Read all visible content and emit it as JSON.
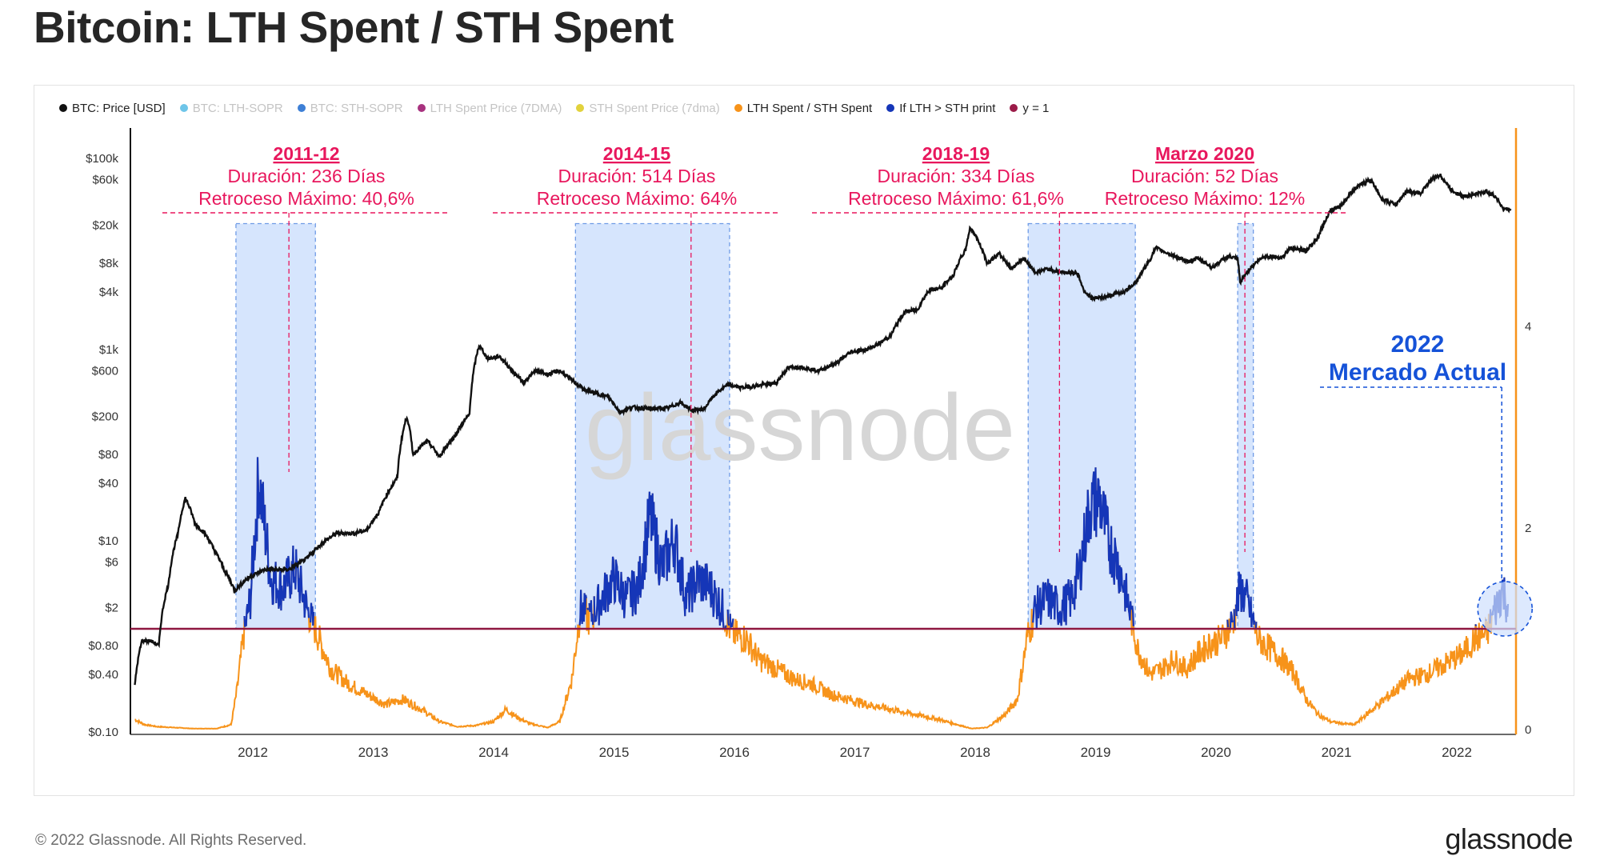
{
  "title": "Bitcoin: LTH Spent / STH Spent",
  "footer": {
    "copyright": "© 2022 Glassnode. All Rights Reserved.",
    "brand": "glassnode"
  },
  "watermark": "glassnode",
  "legend": [
    {
      "label": "BTC: Price [USD]",
      "color": "#111111",
      "faded": false
    },
    {
      "label": "BTC: LTH-SOPR",
      "color": "#6ec5e9",
      "faded": true
    },
    {
      "label": "BTC: STH-SOPR",
      "color": "#3d7fd6",
      "faded": true
    },
    {
      "label": "LTH Spent Price (7DMA)",
      "color": "#a8327f",
      "faded": true
    },
    {
      "label": "STH Spent Price (7dma)",
      "color": "#e2d23c",
      "faded": true
    },
    {
      "label": "LTH Spent / STH Spent",
      "color": "#f7931a",
      "faded": false
    },
    {
      "label": "If LTH > STH print",
      "color": "#1536b8",
      "faded": false
    },
    {
      "label": "y = 1",
      "color": "#9b1b48",
      "faded": false
    }
  ],
  "colors": {
    "price": "#111111",
    "ratio": "#f7931a",
    "highlight": "#1536b8",
    "threshold": "#8e1740",
    "annotation": "#e8175d",
    "current": "#1552d8",
    "zone_fill": "#cfe0fd",
    "zone_border": "#6f9be6"
  },
  "chart_data": {
    "type": "line",
    "title": "Bitcoin: LTH Spent / STH Spent",
    "x_axis": {
      "ticks": [
        "2012",
        "2013",
        "2014",
        "2015",
        "2016",
        "2017",
        "2018",
        "2019",
        "2020",
        "2021",
        "2022"
      ]
    },
    "y_left": {
      "scale": "log",
      "ticks": [
        {
          "label": "$100k",
          "value": 100000
        },
        {
          "label": "$60k",
          "value": 60000
        },
        {
          "label": "$20k",
          "value": 20000
        },
        {
          "label": "$8k",
          "value": 8000
        },
        {
          "label": "$4k",
          "value": 4000
        },
        {
          "label": "$1k",
          "value": 1000
        },
        {
          "label": "$600",
          "value": 600
        },
        {
          "label": "$200",
          "value": 200
        },
        {
          "label": "$80",
          "value": 80
        },
        {
          "label": "$40",
          "value": 40
        },
        {
          "label": "$10",
          "value": 10
        },
        {
          "label": "$6",
          "value": 6
        },
        {
          "label": "$2",
          "value": 2
        },
        {
          "label": "$0.80",
          "value": 0.8
        },
        {
          "label": "$0.40",
          "value": 0.4
        },
        {
          "label": "$0.10",
          "value": 0.1
        }
      ]
    },
    "y_right": {
      "scale": "linear",
      "ticks": [
        0,
        2,
        4
      ],
      "range": [
        0,
        4.5
      ]
    },
    "threshold": {
      "name": "y = 1",
      "value": 1
    },
    "price_series": {
      "name": "BTC: Price [USD]",
      "points": [
        [
          2011.02,
          0.3
        ],
        [
          2011.08,
          0.9
        ],
        [
          2011.15,
          0.9
        ],
        [
          2011.22,
          0.8
        ],
        [
          2011.3,
          3.5
        ],
        [
          2011.38,
          12
        ],
        [
          2011.44,
          28
        ],
        [
          2011.52,
          15
        ],
        [
          2011.6,
          12
        ],
        [
          2011.68,
          8
        ],
        [
          2011.76,
          5
        ],
        [
          2011.85,
          3
        ],
        [
          2011.95,
          4
        ],
        [
          2012.1,
          5
        ],
        [
          2012.3,
          5
        ],
        [
          2012.45,
          6.5
        ],
        [
          2012.6,
          10
        ],
        [
          2012.7,
          12
        ],
        [
          2012.85,
          12
        ],
        [
          2012.95,
          13
        ],
        [
          2013.05,
          20
        ],
        [
          2013.2,
          45
        ],
        [
          2013.28,
          200
        ],
        [
          2013.33,
          80
        ],
        [
          2013.45,
          110
        ],
        [
          2013.55,
          75
        ],
        [
          2013.68,
          125
        ],
        [
          2013.8,
          210
        ],
        [
          2013.88,
          1100
        ],
        [
          2013.95,
          800
        ],
        [
          2014.05,
          850
        ],
        [
          2014.15,
          600
        ],
        [
          2014.25,
          450
        ],
        [
          2014.35,
          600
        ],
        [
          2014.45,
          550
        ],
        [
          2014.55,
          600
        ],
        [
          2014.65,
          480
        ],
        [
          2014.75,
          380
        ],
        [
          2014.85,
          350
        ],
        [
          2014.95,
          320
        ],
        [
          2015.05,
          220
        ],
        [
          2015.15,
          250
        ],
        [
          2015.3,
          240
        ],
        [
          2015.45,
          245
        ],
        [
          2015.55,
          280
        ],
        [
          2015.65,
          230
        ],
        [
          2015.75,
          240
        ],
        [
          2015.85,
          350
        ],
        [
          2015.95,
          430
        ],
        [
          2016.05,
          400
        ],
        [
          2016.2,
          420
        ],
        [
          2016.35,
          450
        ],
        [
          2016.45,
          650
        ],
        [
          2016.55,
          660
        ],
        [
          2016.7,
          600
        ],
        [
          2016.85,
          720
        ],
        [
          2016.97,
          950
        ],
        [
          2017.1,
          1000
        ],
        [
          2017.2,
          1150
        ],
        [
          2017.3,
          1400
        ],
        [
          2017.42,
          2500
        ],
        [
          2017.52,
          2600
        ],
        [
          2017.62,
          4200
        ],
        [
          2017.72,
          4400
        ],
        [
          2017.82,
          6000
        ],
        [
          2017.92,
          11000
        ],
        [
          2017.96,
          19000
        ],
        [
          2018.02,
          14000
        ],
        [
          2018.1,
          8000
        ],
        [
          2018.2,
          10000
        ],
        [
          2018.3,
          7000
        ],
        [
          2018.4,
          9000
        ],
        [
          2018.5,
          6400
        ],
        [
          2018.6,
          7000
        ],
        [
          2018.7,
          6500
        ],
        [
          2018.85,
          6300
        ],
        [
          2018.9,
          4200
        ],
        [
          2018.97,
          3400
        ],
        [
          2019.1,
          3600
        ],
        [
          2019.25,
          4100
        ],
        [
          2019.35,
          5300
        ],
        [
          2019.45,
          8600
        ],
        [
          2019.5,
          11500
        ],
        [
          2019.6,
          10200
        ],
        [
          2019.75,
          8300
        ],
        [
          2019.85,
          9000
        ],
        [
          2019.97,
          7200
        ],
        [
          2020.1,
          9500
        ],
        [
          2020.18,
          8800
        ],
        [
          2020.2,
          5000
        ],
        [
          2020.3,
          7500
        ],
        [
          2020.4,
          9500
        ],
        [
          2020.55,
          9200
        ],
        [
          2020.62,
          11500
        ],
        [
          2020.75,
          10800
        ],
        [
          2020.85,
          15000
        ],
        [
          2020.95,
          28000
        ],
        [
          2021.05,
          33000
        ],
        [
          2021.15,
          48000
        ],
        [
          2021.28,
          60000
        ],
        [
          2021.38,
          37000
        ],
        [
          2021.5,
          33000
        ],
        [
          2021.58,
          45000
        ],
        [
          2021.7,
          43000
        ],
        [
          2021.8,
          62000
        ],
        [
          2021.86,
          67000
        ],
        [
          2021.95,
          47000
        ],
        [
          2022.05,
          40000
        ],
        [
          2022.15,
          42000
        ],
        [
          2022.25,
          45000
        ],
        [
          2022.33,
          39000
        ],
        [
          2022.38,
          30000
        ],
        [
          2022.45,
          29000
        ]
      ]
    },
    "ratio_series": {
      "name": "LTH Spent / STH Spent",
      "points": [
        [
          2011.02,
          0.1
        ],
        [
          2011.1,
          0.05
        ],
        [
          2011.2,
          0.03
        ],
        [
          2011.35,
          0.02
        ],
        [
          2011.5,
          0.01
        ],
        [
          2011.7,
          0.01
        ],
        [
          2011.82,
          0.05
        ],
        [
          2011.87,
          0.4
        ],
        [
          2011.92,
          0.9
        ],
        [
          2011.98,
          1.3
        ],
        [
          2012.05,
          2.5
        ],
        [
          2012.15,
          1.5
        ],
        [
          2012.25,
          1.4
        ],
        [
          2012.35,
          1.6
        ],
        [
          2012.45,
          1.2
        ],
        [
          2012.55,
          0.9
        ],
        [
          2012.65,
          0.6
        ],
        [
          2012.8,
          0.45
        ],
        [
          2012.95,
          0.35
        ],
        [
          2013.1,
          0.25
        ],
        [
          2013.25,
          0.3
        ],
        [
          2013.4,
          0.2
        ],
        [
          2013.55,
          0.08
        ],
        [
          2013.7,
          0.03
        ],
        [
          2013.85,
          0.04
        ],
        [
          2014.0,
          0.08
        ],
        [
          2014.1,
          0.2
        ],
        [
          2014.2,
          0.12
        ],
        [
          2014.3,
          0.06
        ],
        [
          2014.45,
          0.02
        ],
        [
          2014.55,
          0.08
        ],
        [
          2014.65,
          0.5
        ],
        [
          2014.72,
          1.2
        ],
        [
          2014.8,
          1.1
        ],
        [
          2014.9,
          1.3
        ],
        [
          2015.0,
          1.5
        ],
        [
          2015.1,
          1.3
        ],
        [
          2015.2,
          1.4
        ],
        [
          2015.3,
          2.1
        ],
        [
          2015.4,
          1.6
        ],
        [
          2015.5,
          1.9
        ],
        [
          2015.6,
          1.3
        ],
        [
          2015.7,
          1.5
        ],
        [
          2015.8,
          1.4
        ],
        [
          2015.9,
          1.2
        ],
        [
          2015.98,
          0.95
        ],
        [
          2016.1,
          0.9
        ],
        [
          2016.2,
          0.7
        ],
        [
          2016.35,
          0.6
        ],
        [
          2016.5,
          0.5
        ],
        [
          2016.65,
          0.45
        ],
        [
          2016.8,
          0.35
        ],
        [
          2016.95,
          0.3
        ],
        [
          2017.1,
          0.25
        ],
        [
          2017.3,
          0.2
        ],
        [
          2017.5,
          0.15
        ],
        [
          2017.7,
          0.1
        ],
        [
          2017.85,
          0.05
        ],
        [
          2017.97,
          0.01
        ],
        [
          2018.1,
          0.02
        ],
        [
          2018.25,
          0.15
        ],
        [
          2018.35,
          0.3
        ],
        [
          2018.43,
          0.9
        ],
        [
          2018.5,
          1.2
        ],
        [
          2018.6,
          1.3
        ],
        [
          2018.7,
          1.2
        ],
        [
          2018.8,
          1.3
        ],
        [
          2018.87,
          1.6
        ],
        [
          2018.95,
          2.2
        ],
        [
          2019.03,
          2.3
        ],
        [
          2019.1,
          1.9
        ],
        [
          2019.2,
          1.6
        ],
        [
          2019.28,
          1.2
        ],
        [
          2019.35,
          0.8
        ],
        [
          2019.45,
          0.55
        ],
        [
          2019.55,
          0.6
        ],
        [
          2019.65,
          0.7
        ],
        [
          2019.75,
          0.6
        ],
        [
          2019.85,
          0.75
        ],
        [
          2019.95,
          0.85
        ],
        [
          2020.05,
          0.9
        ],
        [
          2020.15,
          1.1
        ],
        [
          2020.2,
          1.4
        ],
        [
          2020.25,
          1.3
        ],
        [
          2020.35,
          0.9
        ],
        [
          2020.45,
          0.8
        ],
        [
          2020.55,
          0.7
        ],
        [
          2020.65,
          0.55
        ],
        [
          2020.75,
          0.3
        ],
        [
          2020.85,
          0.15
        ],
        [
          2020.95,
          0.08
        ],
        [
          2021.05,
          0.06
        ],
        [
          2021.15,
          0.05
        ],
        [
          2021.3,
          0.2
        ],
        [
          2021.45,
          0.35
        ],
        [
          2021.6,
          0.5
        ],
        [
          2021.75,
          0.55
        ],
        [
          2021.9,
          0.65
        ],
        [
          2022.05,
          0.75
        ],
        [
          2022.15,
          0.9
        ],
        [
          2022.25,
          0.95
        ],
        [
          2022.32,
          1.2
        ],
        [
          2022.38,
          1.4
        ],
        [
          2022.43,
          1.2
        ]
      ]
    },
    "highlight_series_name": "If LTH > STH print",
    "highlight_zones": [
      {
        "start": 2011.86,
        "end": 2012.52,
        "peak": 2012.3,
        "label": "2011-12",
        "duration": "Duración: 236 Días",
        "drawdown": "Retroceso Máximo: 40,6%"
      },
      {
        "start": 2014.68,
        "end": 2015.96,
        "peak": 2015.64,
        "label": "2014-15",
        "duration": "Duración: 514 Días",
        "drawdown": "Retroceso Máximo: 64%"
      },
      {
        "start": 2018.44,
        "end": 2019.33,
        "peak": 2018.7,
        "label": "2018-19",
        "duration": "Duración: 334 Días",
        "drawdown": "Retroceso Máximo: 61,6%"
      },
      {
        "start": 2020.18,
        "end": 2020.31,
        "peak": 2020.24,
        "label": "Marzo 2020",
        "duration": "Duración: 52 Días",
        "drawdown": "Retroceso Máximo: 12%"
      }
    ],
    "current_market": {
      "year": "2022",
      "label": "Mercado Actual",
      "x": 2022.4
    }
  }
}
